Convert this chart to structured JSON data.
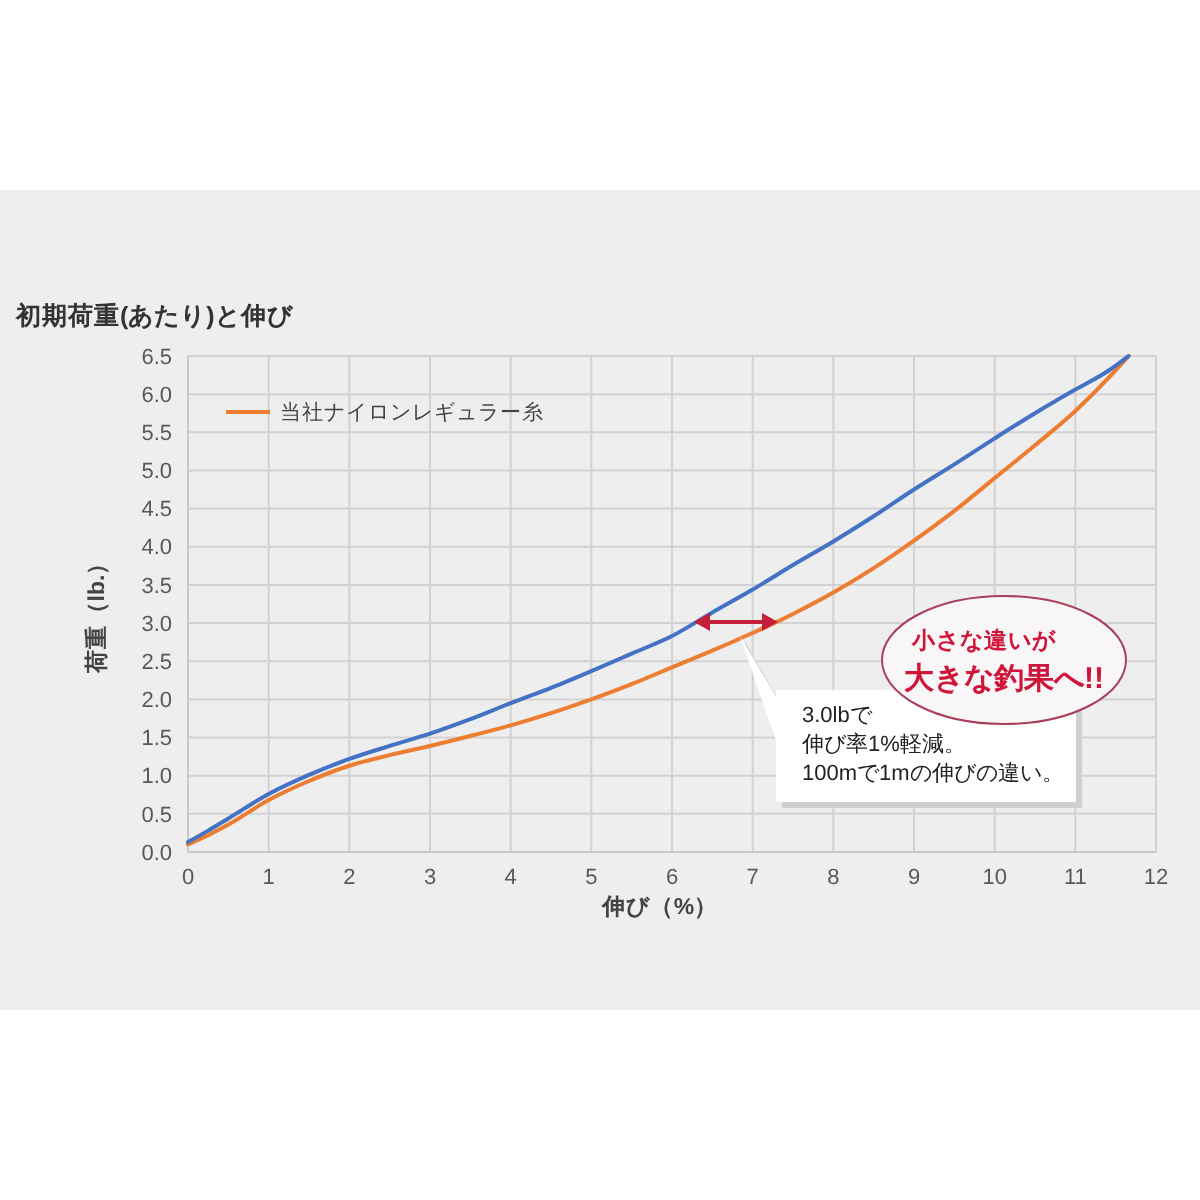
{
  "chart_data": {
    "type": "line",
    "title": "初期荷重(あたり)と伸び",
    "xlabel": "伸び（%）",
    "ylabel": "荷重（lb.）",
    "x": [
      0,
      0.25,
      0.5,
      1,
      1.5,
      2,
      2.5,
      3,
      3.5,
      4,
      4.5,
      5,
      5.5,
      6,
      6.5,
      7,
      7.5,
      8,
      8.5,
      9,
      9.5,
      10,
      10.5,
      11,
      11.4,
      11.66
    ],
    "series": [
      {
        "name": "当社ナイロンレギュラー糸",
        "color": "#ed7d31",
        "values": [
          0.1,
          0.22,
          0.36,
          0.68,
          0.93,
          1.13,
          1.27,
          1.39,
          1.52,
          1.66,
          1.82,
          2.0,
          2.2,
          2.42,
          2.64,
          2.87,
          3.12,
          3.4,
          3.72,
          4.08,
          4.47,
          4.9,
          5.33,
          5.78,
          6.2,
          6.5
        ]
      },
      {
        "color": "#4472c4",
        "values": [
          0.13,
          0.28,
          0.44,
          0.76,
          1.01,
          1.22,
          1.39,
          1.55,
          1.74,
          1.95,
          2.15,
          2.37,
          2.6,
          2.83,
          3.14,
          3.44,
          3.76,
          4.07,
          4.4,
          4.75,
          5.08,
          5.42,
          5.75,
          6.06,
          6.3,
          6.5
        ]
      }
    ],
    "xlim": [
      0,
      12
    ],
    "xticks": [
      0,
      1,
      2,
      3,
      4,
      5,
      6,
      7,
      8,
      9,
      10,
      11,
      12
    ],
    "ylim": [
      0,
      6.5
    ],
    "yticks": [
      {
        "value": 0,
        "label": "0.0"
      },
      0.5,
      {
        "value": 1,
        "label": "1.0"
      },
      1.5,
      {
        "value": 2,
        "label": "2.0"
      },
      2.5,
      {
        "value": 3,
        "label": "3.0"
      },
      3.5,
      {
        "value": 4,
        "label": "4.0"
      },
      4.5,
      {
        "value": 5,
        "label": "5.0"
      },
      5.5,
      {
        "value": 6,
        "label": "6.0"
      },
      6.5
    ],
    "grid": true,
    "legend": "top left",
    "line_style": "solid",
    "annotations": [
      "3.0lbで伸び率1%軽減。100mで1mの伸びの違い。",
      "小さな違いが大きな釣果へ!!"
    ]
  }
}
